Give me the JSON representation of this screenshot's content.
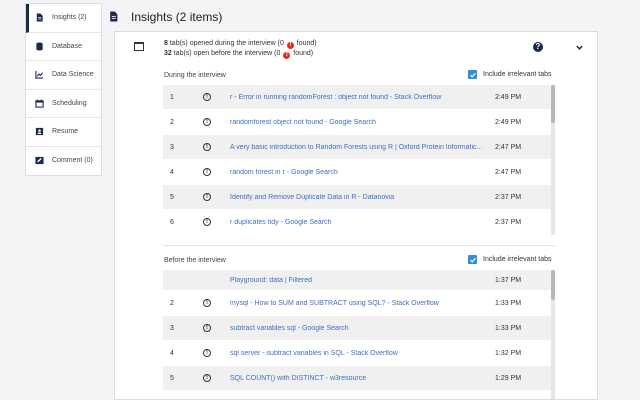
{
  "sidebar": {
    "items": [
      {
        "label": "Insights (2)",
        "icon": "document-icon",
        "active": true
      },
      {
        "label": "Database",
        "icon": "database-icon"
      },
      {
        "label": "Data Science",
        "icon": "chart-icon"
      },
      {
        "label": "Scheduling",
        "icon": "calendar-icon"
      },
      {
        "label": "Resume",
        "icon": "id-card-icon"
      },
      {
        "label": "Comment (0)",
        "icon": "pen-icon"
      }
    ]
  },
  "header": {
    "title": "Insights (2 items)"
  },
  "summary": {
    "line1_count": "8",
    "line1_text": " tab(s) opened during the interview (0 ",
    "line1_tail": " found)",
    "line2_count": "32",
    "line2_text": " tab(s) open before the interview (0 ",
    "line2_tail": " found)",
    "bad_glyph": "!"
  },
  "during": {
    "title": "During the interview",
    "include_label": "Include irrelevant tabs",
    "rows": [
      {
        "num": "1",
        "title": "r - Error in running randomForest : object not found - Stack Overflow",
        "time": "2:49 PM"
      },
      {
        "num": "2",
        "title": "randomforest object not found - Google Search",
        "time": "2:49 PM"
      },
      {
        "num": "3",
        "title": "A very basic introduction to Random Forests using R | Oxford Protein Informatic...",
        "time": "2:47 PM"
      },
      {
        "num": "4",
        "title": "random forest in r - Google Search",
        "time": "2:47 PM"
      },
      {
        "num": "5",
        "title": "Identify and Remove Duplicate Data in R - Datanovia",
        "time": "2:37 PM"
      },
      {
        "num": "6",
        "title": "r duplicates tidy - Google Search",
        "time": "2:37 PM"
      }
    ]
  },
  "before": {
    "title": "Before the interview",
    "include_label": "Include irrelevant tabs",
    "rows": [
      {
        "num": "1",
        "title": "Playground: data | Filtered",
        "time": "1:37 PM"
      },
      {
        "num": "2",
        "title": "mysql - How to SUM and SUBTRACT using SQL? - Stack Overflow",
        "time": "1:33 PM"
      },
      {
        "num": "3",
        "title": "subtract variables sql - Google Search",
        "time": "1:33 PM"
      },
      {
        "num": "4",
        "title": "sql server - subtract variables in SQL - Stack Overflow",
        "time": "1:32 PM"
      },
      {
        "num": "5",
        "title": "SQL COUNT() with DISTINCT - w3resource",
        "time": "1:29 PM"
      }
    ]
  },
  "colors": {
    "accent": "#1b2a4a",
    "link": "#3b6fc4",
    "checkbox": "#2f8fd8",
    "alert": "#d93025"
  }
}
